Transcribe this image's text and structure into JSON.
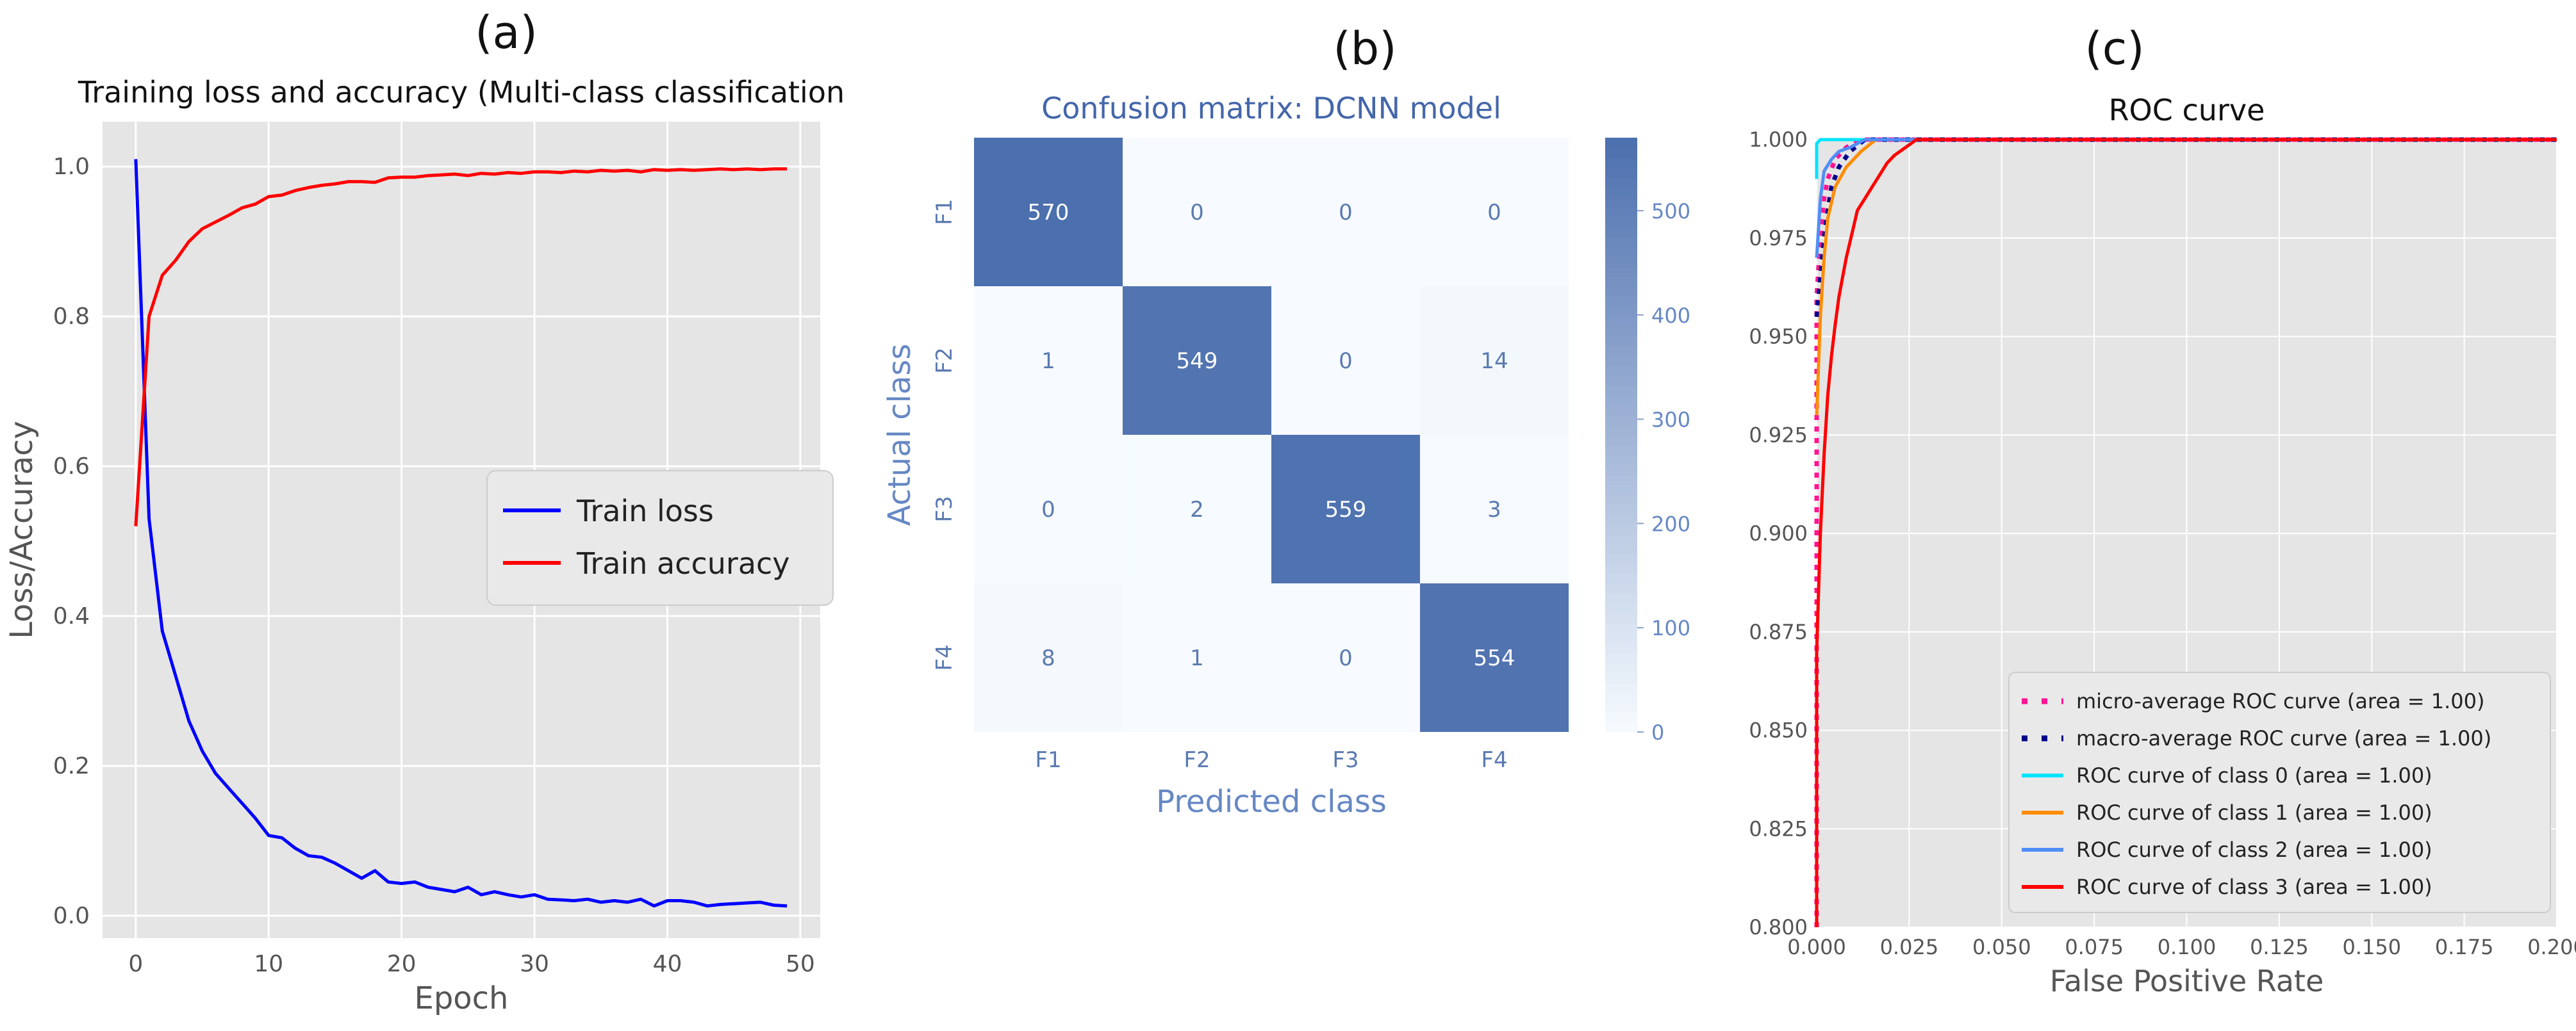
{
  "panel_labels": [
    "(a)",
    "(b)",
    "(c)"
  ],
  "chart_data": [
    {
      "type": "line",
      "title": "Training loss and accuracy (Multi-class classification",
      "xlabel": "Epoch",
      "ylabel": "Loss/Accuracy",
      "xlim": [
        -2.5,
        51.5
      ],
      "ylim": [
        -0.03,
        1.06
      ],
      "xticks": [
        0,
        10,
        20,
        30,
        40,
        50
      ],
      "yticks": [
        0.0,
        0.2,
        0.4,
        0.6,
        0.8,
        1.0
      ],
      "xtick_labels": [
        "0",
        "10",
        "20",
        "30",
        "40",
        "50"
      ],
      "ytick_labels": [
        "0.0",
        "0.2",
        "0.4",
        "0.6",
        "0.8",
        "1.0"
      ],
      "grid": true,
      "legend_position": "center-right",
      "x": [
        0,
        1,
        2,
        3,
        4,
        5,
        6,
        7,
        8,
        9,
        10,
        11,
        12,
        13,
        14,
        15,
        16,
        17,
        18,
        19,
        20,
        21,
        22,
        23,
        24,
        25,
        26,
        27,
        28,
        29,
        30,
        31,
        32,
        33,
        34,
        35,
        36,
        37,
        38,
        39,
        40,
        41,
        42,
        43,
        44,
        45,
        46,
        47,
        48,
        49
      ],
      "series": [
        {
          "name": "Train loss",
          "color": "#0000ff",
          "values": [
            1.01,
            0.53,
            0.38,
            0.32,
            0.26,
            0.22,
            0.19,
            0.17,
            0.15,
            0.13,
            0.107,
            0.104,
            0.09,
            0.08,
            0.078,
            0.07,
            0.06,
            0.05,
            0.06,
            0.045,
            0.043,
            0.045,
            0.038,
            0.035,
            0.032,
            0.038,
            0.028,
            0.032,
            0.028,
            0.025,
            0.028,
            0.022,
            0.021,
            0.02,
            0.022,
            0.018,
            0.02,
            0.018,
            0.022,
            0.013,
            0.02,
            0.02,
            0.018,
            0.013,
            0.015,
            0.016,
            0.017,
            0.018,
            0.014,
            0.013
          ]
        },
        {
          "name": "Train accuracy",
          "color": "#ff0000",
          "values": [
            0.52,
            0.8,
            0.855,
            0.875,
            0.9,
            0.917,
            0.926,
            0.935,
            0.945,
            0.95,
            0.96,
            0.962,
            0.968,
            0.972,
            0.975,
            0.977,
            0.98,
            0.98,
            0.979,
            0.985,
            0.986,
            0.986,
            0.988,
            0.989,
            0.99,
            0.988,
            0.991,
            0.99,
            0.992,
            0.991,
            0.993,
            0.993,
            0.992,
            0.994,
            0.993,
            0.995,
            0.994,
            0.995,
            0.993,
            0.996,
            0.995,
            0.996,
            0.995,
            0.996,
            0.997,
            0.996,
            0.997,
            0.996,
            0.997,
            0.997
          ]
        }
      ]
    },
    {
      "type": "heatmap",
      "title": "Confusion matrix: DCNN model",
      "xlabel": "Predicted class",
      "ylabel": "Actual class",
      "x_categories": [
        "F1",
        "F2",
        "F3",
        "F4"
      ],
      "y_categories": [
        "F1",
        "F2",
        "F3",
        "F4"
      ],
      "values": [
        [
          570,
          0,
          0,
          0
        ],
        [
          1,
          549,
          0,
          14
        ],
        [
          0,
          2,
          559,
          3
        ],
        [
          8,
          1,
          0,
          554
        ]
      ],
      "colorbar": {
        "min": 0,
        "max": 570,
        "ticks": [
          "0",
          "100",
          "200",
          "300",
          "400",
          "500"
        ],
        "color_low": "#f7fbff",
        "color_high": "#4c6fae"
      }
    },
    {
      "type": "line",
      "title": "ROC curve",
      "xlabel": "False Positive Rate",
      "ylabel": "",
      "xlim": [
        0.0,
        0.2
      ],
      "ylim": [
        0.8,
        1.0
      ],
      "xticks": [
        0.0,
        0.025,
        0.05,
        0.075,
        0.1,
        0.125,
        0.15,
        0.175,
        0.2
      ],
      "yticks": [
        0.8,
        0.825,
        0.85,
        0.875,
        0.9,
        0.925,
        0.95,
        0.975,
        1.0
      ],
      "xtick_labels": [
        "0.000",
        "0.025",
        "0.050",
        "0.075",
        "0.100",
        "0.125",
        "0.150",
        "0.175",
        "0.200"
      ],
      "ytick_labels": [
        "0.800",
        "0.825",
        "0.850",
        "0.875",
        "0.900",
        "0.925",
        "0.950",
        "0.975",
        "1.000"
      ],
      "grid": true,
      "legend_position": "lower-right",
      "series": [
        {
          "name": "micro-average ROC curve (area = 1.00)",
          "color": "#ff1493",
          "style": "dotted",
          "x": [
            0,
            0,
            0.001,
            0.002,
            0.003,
            0.005,
            0.008,
            0.012,
            0.2
          ],
          "y": [
            0.8,
            0.96,
            0.975,
            0.985,
            0.99,
            0.995,
            0.998,
            1.0,
            1.0
          ]
        },
        {
          "name": "macro-average ROC curve (area = 1.00)",
          "color": "#00008b",
          "style": "dotted",
          "x": [
            0,
            0.001,
            0.002,
            0.003,
            0.004,
            0.006,
            0.009,
            0.013,
            0.2
          ],
          "y": [
            0.955,
            0.965,
            0.975,
            0.982,
            0.988,
            0.993,
            0.997,
            1.0,
            1.0
          ]
        },
        {
          "name": "ROC curve of class 0 (area = 1.00)",
          "color": "#00e5ff",
          "style": "solid",
          "x": [
            0,
            0,
            0.001,
            0.2
          ],
          "y": [
            0.99,
            0.999,
            1.0,
            1.0
          ]
        },
        {
          "name": "ROC curve of class 1 (area = 1.00)",
          "color": "#ff8c00",
          "style": "solid",
          "x": [
            0,
            0.001,
            0.002,
            0.003,
            0.005,
            0.008,
            0.012,
            0.016,
            0.2
          ],
          "y": [
            0.93,
            0.955,
            0.97,
            0.98,
            0.988,
            0.993,
            0.997,
            1.0,
            1.0
          ]
        },
        {
          "name": "ROC curve of class 2 (area = 1.00)",
          "color": "#4f8ef7",
          "style": "solid",
          "x": [
            0,
            0.001,
            0.002,
            0.004,
            0.006,
            0.009,
            0.013,
            0.2
          ],
          "y": [
            0.97,
            0.985,
            0.992,
            0.995,
            0.997,
            0.998,
            1.0,
            1.0
          ]
        },
        {
          "name": "ROC curve of class 3 (area = 1.00)",
          "color": "#ff0000",
          "style": "solid",
          "x": [
            0,
            0,
            0.001,
            0.002,
            0.003,
            0.004,
            0.005,
            0.006,
            0.007,
            0.008,
            0.009,
            0.01,
            0.011,
            0.013,
            0.015,
            0.017,
            0.019,
            0.021,
            0.024,
            0.027,
            0.2
          ],
          "y": [
            0.8,
            0.87,
            0.9,
            0.92,
            0.935,
            0.945,
            0.953,
            0.96,
            0.965,
            0.97,
            0.974,
            0.978,
            0.982,
            0.985,
            0.988,
            0.991,
            0.994,
            0.996,
            0.998,
            1.0,
            1.0
          ]
        }
      ]
    }
  ]
}
